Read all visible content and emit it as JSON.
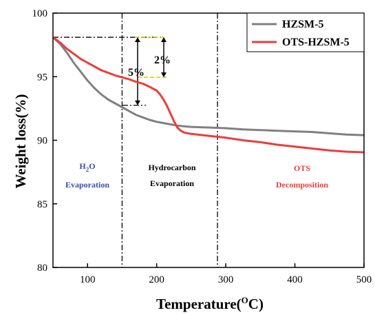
{
  "chart_data": {
    "type": "line",
    "xlabel": "Temperature(",
    "xlabel_sup": "O",
    "xlabel_unit": "C)",
    "ylabel": "Weight loss(%)",
    "xlim": [
      50,
      500
    ],
    "ylim": [
      80,
      100
    ],
    "xticks": [
      100,
      200,
      300,
      400,
      500
    ],
    "yticks": [
      80,
      85,
      90,
      95,
      100
    ],
    "grid": false,
    "legend_position": "top-right",
    "series": [
      {
        "name": "HZSM-5",
        "color": "#808080",
        "x": [
          50,
          60,
          70,
          80,
          90,
          100,
          110,
          120,
          130,
          140,
          150,
          160,
          170,
          180,
          190,
          200,
          210,
          220,
          230,
          240,
          250,
          275,
          300,
          325,
          350,
          375,
          400,
          425,
          450,
          475,
          500
        ],
        "y": [
          98.1,
          97.6,
          96.9,
          96.1,
          95.4,
          94.7,
          94.1,
          93.6,
          93.2,
          92.9,
          92.6,
          92.3,
          92.0,
          91.8,
          91.6,
          91.45,
          91.35,
          91.25,
          91.15,
          91.1,
          91.05,
          91.0,
          90.95,
          90.85,
          90.8,
          90.75,
          90.7,
          90.65,
          90.55,
          90.45,
          90.4
        ]
      },
      {
        "name": "OTS-HZSM-5",
        "color": "#ee3b3b",
        "x": [
          50,
          60,
          70,
          80,
          90,
          100,
          110,
          120,
          130,
          140,
          150,
          160,
          170,
          180,
          190,
          200,
          205,
          210,
          215,
          220,
          225,
          230,
          235,
          240,
          250,
          275,
          300,
          325,
          350,
          375,
          400,
          425,
          450,
          475,
          500
        ],
        "y": [
          98.1,
          97.7,
          97.2,
          96.8,
          96.4,
          96.1,
          95.8,
          95.5,
          95.3,
          95.1,
          94.95,
          94.8,
          94.6,
          94.45,
          94.2,
          93.9,
          93.6,
          93.2,
          92.7,
          92.1,
          91.5,
          91.0,
          90.75,
          90.6,
          90.5,
          90.35,
          90.2,
          90.0,
          89.85,
          89.65,
          89.5,
          89.35,
          89.2,
          89.1,
          89.05
        ]
      }
    ],
    "annotations": {
      "region1_label_main": "H",
      "region1_label_sub": "2",
      "region1_label_tail": "O",
      "region1_label_line2": "Evaporation",
      "region1_color": "#3a4bb0",
      "region2_label_line1": "Hydrocarbon",
      "region2_label_line2": "Evaporation",
      "region2_color": "#000000",
      "region3_label_line1": "OTS",
      "region3_label_line2": "Decomposition",
      "region3_color": "#ee3b3b",
      "divider_x": [
        150,
        288
      ],
      "loss_small_label": "2%",
      "loss_large_label": "5%",
      "reference_level": 98.1,
      "loss_small_level": 94.95,
      "loss_large_level": 92.75,
      "marker_color": "#e3c200"
    }
  }
}
